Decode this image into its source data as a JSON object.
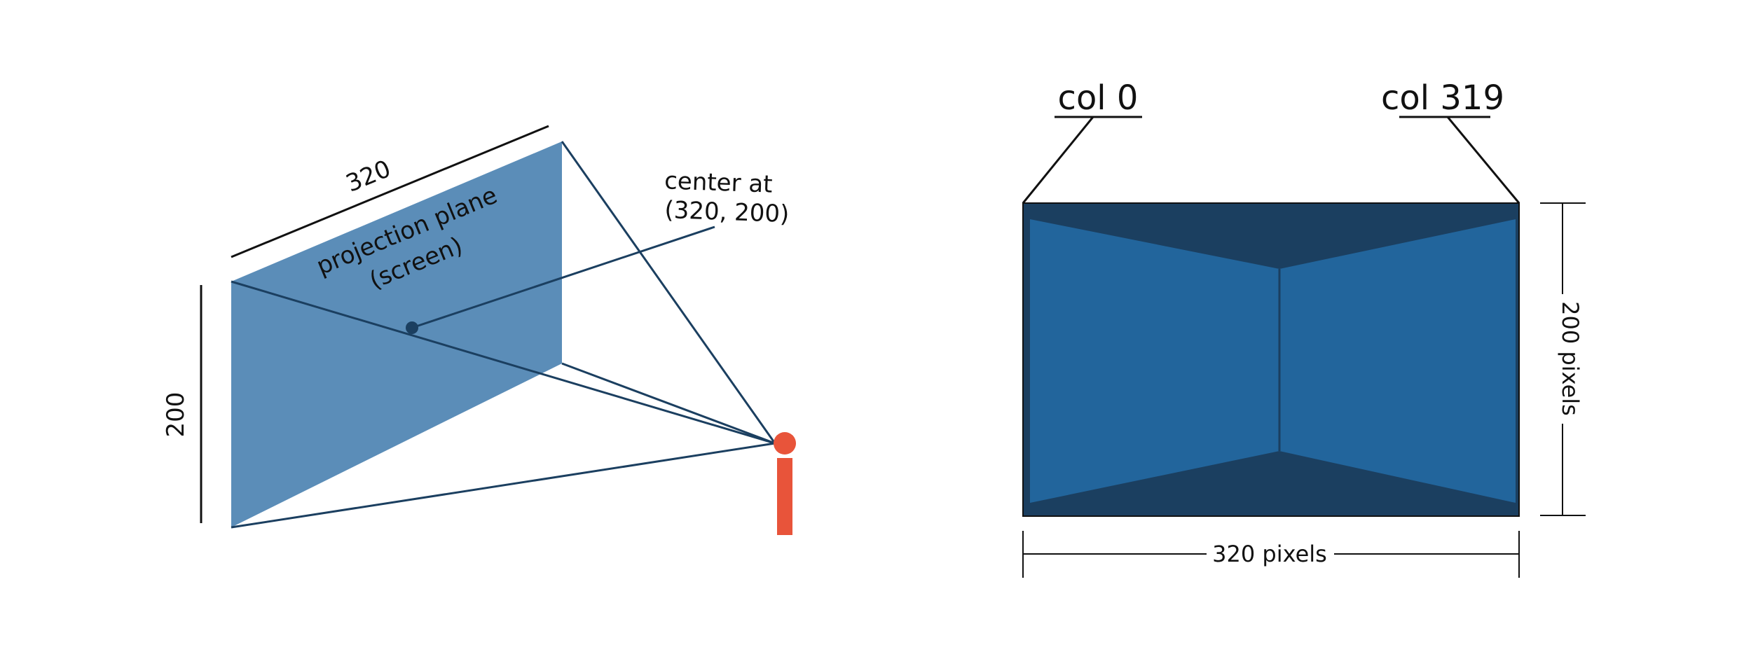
{
  "projection": {
    "width_label": "320",
    "height_label": "200",
    "plane_label_line1": "projection plane",
    "plane_label_line2": "(screen)",
    "center_label_line1": "center at",
    "center_label_line2": "(320, 200)"
  },
  "screen": {
    "col_first_label": "col 0",
    "col_last_label": "col 319",
    "height_label": "200 pixels",
    "width_label": "320 pixels"
  },
  "colors": {
    "plane_fill": "#5b8db8",
    "ray_stroke": "#1b3f60",
    "viewer": "#e8543a",
    "screen_dark": "#1b3f60",
    "screen_wall": "#22659c"
  }
}
